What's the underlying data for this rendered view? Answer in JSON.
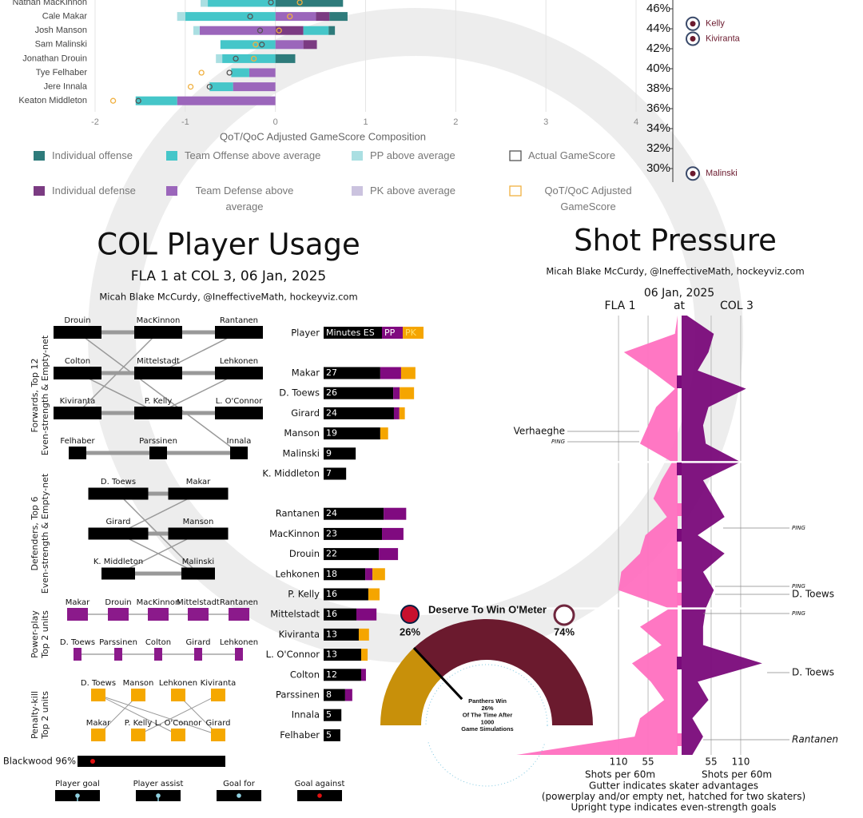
{
  "chart_data": [
    {
      "type": "hbar-stacked",
      "categories": [
        "Nathan MacKinnon",
        "Cale Makar",
        "Josh Manson",
        "Sam Malinski",
        "Jonathan Drouin",
        "Tye Felhaber",
        "Jere Innala",
        "Keaton Middleton"
      ],
      "series": [
        {
          "name": "Individual offense",
          "color": "#2e7b7b",
          "values": [
            0.75,
            0.2,
            0.07,
            0,
            0.22,
            0,
            0,
            0
          ]
        },
        {
          "name": "Team Offense above average",
          "color": "#45c6c9",
          "values": [
            -0.75,
            -1.0,
            0.28,
            -0.61,
            -0.59,
            -0.2,
            -0.26,
            -0.46
          ]
        },
        {
          "name": "PP above average",
          "color": "#aadfe2",
          "values": [
            -0.08,
            -0.09,
            -0.07,
            0,
            -0.07,
            0,
            0,
            0
          ]
        },
        {
          "name": "Individual defense",
          "color": "#7b3b82",
          "values": [
            0,
            0.15,
            0.31,
            0.15,
            0,
            0,
            0,
            0
          ]
        },
        {
          "name": "Team Defense above average",
          "color": "#9b66bb",
          "values": [
            0,
            0.45,
            -0.84,
            0.31,
            0,
            -0.29,
            -0.47,
            -1.09
          ]
        },
        {
          "name": "PK above average",
          "color": "#cbc3df",
          "values": [
            0,
            0,
            0,
            0,
            0,
            0,
            0,
            0
          ]
        }
      ],
      "markers": [
        {
          "name": "Actual GameScore",
          "color": "#555555",
          "values": [
            -0.05,
            -0.28,
            -0.17,
            -0.15,
            -0.44,
            -0.51,
            -0.73,
            -1.52
          ]
        },
        {
          "name": "QoT/QoC Adjusted GameScore",
          "color": "#f0b040",
          "values": [
            0.27,
            0.16,
            0.04,
            -0.22,
            -0.24,
            -0.82,
            -0.94,
            -1.8
          ]
        }
      ],
      "xlabel": "QoT/QoC Adjusted GameScore Composition",
      "xlim": [
        -2,
        4
      ],
      "xticks": [
        -2,
        -1,
        0,
        1,
        2,
        3,
        4
      ],
      "grid": true
    },
    {
      "type": "scatter",
      "categories": [
        "Kelly",
        "Kiviranta",
        "Malinski"
      ],
      "values": [
        44.5,
        43.0,
        29.5
      ],
      "color": "#6b1a2e",
      "ylim": [
        29,
        47
      ],
      "yticks": [
        {
          "value": 46,
          "label": "46%"
        },
        {
          "value": 44,
          "label": "44%"
        },
        {
          "value": 42,
          "label": "42%"
        },
        {
          "value": 40,
          "label": "40%"
        },
        {
          "value": 38,
          "label": "38%"
        },
        {
          "value": 36,
          "label": "36%"
        },
        {
          "value": 34,
          "label": "34%"
        },
        {
          "value": 32,
          "label": "32%"
        },
        {
          "value": 30,
          "label": "30%"
        }
      ]
    },
    {
      "type": "usage",
      "title": "COL Player Usage",
      "subtitle": "FLA 1 at COL 3, 06 Jan, 2025",
      "credit": "Micah Blake McCurdy, @IneffectiveMath, hockeyviz.com",
      "sections": [
        {
          "label": [
            "Forwards, Top 12",
            "Even-strength & Empty-net"
          ],
          "lines": [
            [
              "Drouin",
              "MacKinnon",
              "Rantanen"
            ],
            [
              "Colton",
              "Mittelstadt",
              "Lehkonen"
            ],
            [
              "Kiviranta",
              "P. Kelly",
              "L. O'Connor"
            ],
            [
              "Felhaber",
              "Parssinen",
              "Innala"
            ]
          ]
        },
        {
          "label": [
            "Defenders, Top 6",
            "Even-strength & Empty-net"
          ],
          "lines": [
            [
              "D. Toews",
              "Makar"
            ],
            [
              "Girard",
              "Manson"
            ],
            [
              "K. Middleton",
              "Malinski"
            ]
          ]
        },
        {
          "label": [
            "Power-play",
            "Top 2 units"
          ],
          "lines": [
            [
              "Makar",
              "Drouin",
              "MacKinnon",
              "Mittelstadt",
              "Rantanen"
            ],
            [
              "D. Toews",
              "Parssinen",
              "Colton",
              "Girard",
              "Lehkonen"
            ]
          ]
        },
        {
          "label": [
            "Penalty-kill",
            "Top 2 units"
          ],
          "lines": [
            [
              "D. Toews",
              "Manson",
              "Lehkonen",
              "Kiviranta"
            ],
            [
              "Makar",
              "P. Kelly",
              "L. O'Connor",
              "Girard"
            ]
          ]
        }
      ],
      "goalie": "Blackwood 96%",
      "legend": [
        "Player goal",
        "Player assist",
        "Goal for",
        "Goal against"
      ],
      "minutes_header": "Player",
      "categories": [
        "Makar",
        "D. Toews",
        "Girard",
        "Manson",
        "Malinski",
        "K. Middleton",
        "Rantanen",
        "MacKinnon",
        "Drouin",
        "Lehkonen",
        "P. Kelly",
        "Mittelstadt",
        "Kiviranta",
        "L. O'Connor",
        "Colton",
        "Parssinen",
        "Innala",
        "Felhaber"
      ],
      "totals": [
        27,
        26,
        24,
        19,
        9,
        7,
        24,
        23,
        22,
        18,
        16,
        16,
        13,
        13,
        12,
        8,
        5,
        5
      ],
      "series": [
        {
          "name": "Minutes ES",
          "color": "#000000",
          "values": [
            16.6,
            20.4,
            20.6,
            16.6,
            9.4,
            6.6,
            17.6,
            17.1,
            16.2,
            12.2,
            13.1,
            9.6,
            10.3,
            11.0,
            11.0,
            6.3,
            5.2,
            4.9
          ]
        },
        {
          "name": "PP",
          "color": "#800a80",
          "values": [
            6.1,
            1.9,
            1.6,
            0,
            0,
            0,
            6.6,
            6.3,
            5.6,
            2.1,
            0,
            5.9,
            0,
            0,
            1.4,
            2.1,
            0,
            0
          ]
        },
        {
          "name": "PK",
          "color": "#f5a500",
          "values": [
            4.2,
            4.2,
            1.6,
            2.3,
            0,
            0,
            0,
            0,
            0,
            3.7,
            3.3,
            0,
            3.0,
            1.9,
            0,
            0,
            0,
            0
          ]
        }
      ]
    },
    {
      "type": "mirror-area",
      "title": "Shot Pressure",
      "credit": "Micah Blake McCurdy, @IneffectiveMath, hockeyviz.com",
      "date": "06 Jan, 2025",
      "away": "FLA 1",
      "at": "at",
      "home": "COL 3",
      "x": [
        0,
        2.5,
        5,
        7.5,
        10,
        12.5,
        15,
        17.5,
        20,
        22.5,
        25,
        27.5,
        30,
        32.5,
        35,
        37.5,
        40,
        42.5,
        45,
        47.5,
        50,
        52.5,
        55,
        57.5,
        60
      ],
      "xlim": [
        0,
        60
      ],
      "periods": [
        20,
        40
      ],
      "series": [
        {
          "name": "FLA",
          "color": "#ff70c0",
          "values": [
            0,
            5,
            100,
            50,
            5,
            40,
            55,
            70,
            10,
            30,
            45,
            20,
            60,
            70,
            105,
            110,
            15,
            70,
            30,
            85,
            50,
            25,
            70,
            80,
            300
          ]
        },
        {
          "name": "COL",
          "color": "#7a0a7a",
          "values": [
            10,
            60,
            50,
            30,
            120,
            50,
            40,
            45,
            110,
            40,
            60,
            80,
            30,
            80,
            40,
            60,
            45,
            40,
            40,
            150,
            30,
            50,
            20,
            40,
            20
          ]
        }
      ],
      "left_ticks": [
        110,
        55
      ],
      "right_ticks": [
        55,
        110
      ],
      "xlabel": "Shots per 60m",
      "annotations": [
        "Verhaeghe",
        "PING",
        "PING",
        "PING",
        "D. Toews",
        "PING",
        "D. Toews",
        "Rantanen"
      ],
      "footnotes": [
        "Gutter indicates skater advantages",
        "(powerplay and/or empty net, hatched for two skaters)",
        "Upright type indicates even-strength goals"
      ]
    },
    {
      "type": "gauge",
      "title": "Deserve To Win O'Meter",
      "values": [
        26,
        74
      ],
      "value_labels": [
        "26%",
        "74%"
      ],
      "colors": [
        "#c8900a",
        "#6b1a2e"
      ],
      "caption_head": "Panthers Win",
      "caption_mid": "Of The Time After",
      "simulations": 1000,
      "caption_tail": "Game Simulations"
    }
  ]
}
